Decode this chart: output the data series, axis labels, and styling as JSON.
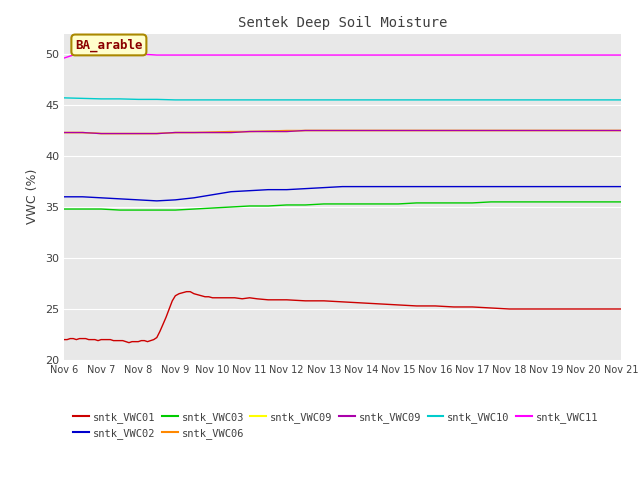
{
  "title": "Sentek Deep Soil Moisture",
  "ylabel": "VWC (%)",
  "ylim": [
    20,
    52
  ],
  "yticks": [
    20,
    25,
    30,
    35,
    40,
    45,
    50
  ],
  "xtick_labels": [
    "Nov 6",
    "Nov 7",
    "Nov 8",
    "Nov 9",
    "Nov 10",
    "Nov 11",
    "Nov 12",
    "Nov 13",
    "Nov 14",
    "Nov 15",
    "Nov 16",
    "Nov 17",
    "Nov 18",
    "Nov 19",
    "Nov 20",
    "Nov 21"
  ],
  "plot_bg_color": "#e8e8e8",
  "annotation_text": "BA_arable",
  "series": [
    {
      "key": "sntk_VWC01",
      "color": "#cc0000",
      "label": "sntk_VWC01",
      "values_x": [
        6.0,
        6.083,
        6.167,
        6.25,
        6.333,
        6.417,
        6.5,
        6.583,
        6.667,
        6.75,
        6.833,
        6.917,
        7.0,
        7.083,
        7.167,
        7.25,
        7.333,
        7.417,
        7.5,
        7.583,
        7.667,
        7.75,
        7.833,
        7.917,
        8.0,
        8.083,
        8.167,
        8.25,
        8.333,
        8.417,
        8.5,
        8.583,
        8.667,
        8.75,
        8.833,
        8.917,
        9.0,
        9.1,
        9.2,
        9.3,
        9.4,
        9.5,
        9.6,
        9.7,
        9.8,
        9.9,
        10.0,
        10.2,
        10.4,
        10.6,
        10.8,
        11.0,
        11.2,
        11.5,
        11.8,
        12.0,
        12.5,
        13.0,
        13.5,
        14.0,
        14.5,
        15.0,
        15.5,
        16.0,
        16.5,
        17.0,
        17.5,
        18.0,
        18.5,
        19.0,
        19.5,
        20.0,
        20.5,
        21.0
      ],
      "values_y": [
        22.0,
        22.0,
        22.1,
        22.1,
        22.0,
        22.1,
        22.1,
        22.1,
        22.0,
        22.0,
        22.0,
        21.9,
        22.0,
        22.0,
        22.0,
        22.0,
        21.9,
        21.9,
        21.9,
        21.9,
        21.8,
        21.7,
        21.8,
        21.8,
        21.8,
        21.9,
        21.9,
        21.8,
        21.9,
        22.0,
        22.2,
        22.8,
        23.5,
        24.2,
        25.0,
        25.8,
        26.3,
        26.5,
        26.6,
        26.7,
        26.7,
        26.5,
        26.4,
        26.3,
        26.2,
        26.2,
        26.1,
        26.1,
        26.1,
        26.1,
        26.0,
        26.1,
        26.0,
        25.9,
        25.9,
        25.9,
        25.8,
        25.8,
        25.7,
        25.6,
        25.5,
        25.4,
        25.3,
        25.3,
        25.2,
        25.2,
        25.1,
        25.0,
        25.0,
        25.0,
        25.0,
        25.0,
        25.0,
        25.0
      ]
    },
    {
      "key": "sntk_VWC02",
      "color": "#0000cc",
      "label": "sntk_VWC02",
      "values_x": [
        6.0,
        6.5,
        7.0,
        7.5,
        8.0,
        8.5,
        9.0,
        9.5,
        10.0,
        10.5,
        11.0,
        11.5,
        12.0,
        12.5,
        13.0,
        13.5,
        14.0,
        14.5,
        15.0,
        15.5,
        16.0,
        16.5,
        17.0,
        17.5,
        18.0,
        18.5,
        19.0,
        19.5,
        20.0,
        20.5,
        21.0
      ],
      "values_y": [
        36.0,
        36.0,
        35.9,
        35.8,
        35.7,
        35.6,
        35.7,
        35.9,
        36.2,
        36.5,
        36.6,
        36.7,
        36.7,
        36.8,
        36.9,
        37.0,
        37.0,
        37.0,
        37.0,
        37.0,
        37.0,
        37.0,
        37.0,
        37.0,
        37.0,
        37.0,
        37.0,
        37.0,
        37.0,
        37.0,
        37.0
      ]
    },
    {
      "key": "sntk_VWC03",
      "color": "#00cc00",
      "label": "sntk_VWC03",
      "values_x": [
        6.0,
        6.5,
        7.0,
        7.5,
        8.0,
        8.5,
        9.0,
        9.5,
        10.0,
        10.5,
        11.0,
        11.5,
        12.0,
        12.5,
        13.0,
        13.5,
        14.0,
        14.5,
        15.0,
        15.5,
        16.0,
        16.5,
        17.0,
        17.5,
        18.0,
        18.5,
        19.0,
        19.5,
        20.0,
        20.5,
        21.0
      ],
      "values_y": [
        34.8,
        34.8,
        34.8,
        34.7,
        34.7,
        34.7,
        34.7,
        34.8,
        34.9,
        35.0,
        35.1,
        35.1,
        35.2,
        35.2,
        35.3,
        35.3,
        35.3,
        35.3,
        35.3,
        35.4,
        35.4,
        35.4,
        35.4,
        35.5,
        35.5,
        35.5,
        35.5,
        35.5,
        35.5,
        35.5,
        35.5
      ]
    },
    {
      "key": "sntk_VWC06",
      "color": "#ff8800",
      "label": "sntk_VWC06",
      "values_x": [
        6.0,
        6.5,
        7.0,
        7.5,
        8.0,
        8.5,
        9.0,
        9.5,
        10.0,
        10.5,
        11.0,
        11.5,
        12.0,
        12.5,
        13.0,
        13.5,
        14.0,
        14.5,
        15.0,
        15.5,
        16.0,
        16.5,
        17.0,
        17.5,
        18.0,
        18.5,
        19.0,
        19.5,
        20.0,
        20.5,
        21.0
      ],
      "values_y": [
        42.3,
        42.3,
        42.2,
        42.2,
        42.2,
        42.2,
        42.3,
        42.3,
        42.35,
        42.4,
        42.4,
        42.45,
        42.5,
        42.5,
        42.5,
        42.5,
        42.5,
        42.5,
        42.5,
        42.5,
        42.5,
        42.5,
        42.5,
        42.5,
        42.5,
        42.5,
        42.5,
        42.5,
        42.5,
        42.5,
        42.5
      ]
    },
    {
      "key": "sntk_VWC09a",
      "color": "#ffff00",
      "label": "sntk_VWC09",
      "values_x": [
        6.0,
        6.5,
        7.0,
        7.5,
        8.0,
        8.5,
        9.0,
        9.5,
        10.0,
        10.5,
        11.0,
        11.5,
        12.0,
        12.5,
        13.0,
        13.5,
        14.0,
        14.5,
        15.0,
        15.5,
        16.0,
        16.5,
        17.0,
        17.5,
        18.0,
        18.5,
        19.0,
        19.5,
        20.0,
        20.5,
        21.0
      ],
      "values_y": [
        42.3,
        42.3,
        42.2,
        42.2,
        42.2,
        42.2,
        42.3,
        42.3,
        42.3,
        42.3,
        42.4,
        42.4,
        42.4,
        42.5,
        42.5,
        42.5,
        42.5,
        42.5,
        42.5,
        42.5,
        42.5,
        42.5,
        42.5,
        42.5,
        42.5,
        42.5,
        42.5,
        42.5,
        42.5,
        42.5,
        42.5
      ]
    },
    {
      "key": "sntk_VWC09b",
      "color": "#aa00aa",
      "label": "sntk_VWC09",
      "values_x": [
        6.0,
        6.5,
        7.0,
        7.5,
        8.0,
        8.5,
        9.0,
        9.5,
        10.0,
        10.5,
        11.0,
        11.5,
        12.0,
        12.5,
        13.0,
        13.5,
        14.0,
        14.5,
        15.0,
        15.5,
        16.0,
        16.5,
        17.0,
        17.5,
        18.0,
        18.5,
        19.0,
        19.5,
        20.0,
        20.5,
        21.0
      ],
      "values_y": [
        42.3,
        42.3,
        42.2,
        42.2,
        42.2,
        42.2,
        42.3,
        42.3,
        42.3,
        42.3,
        42.4,
        42.4,
        42.4,
        42.5,
        42.5,
        42.5,
        42.5,
        42.5,
        42.5,
        42.5,
        42.5,
        42.5,
        42.5,
        42.5,
        42.5,
        42.5,
        42.5,
        42.5,
        42.5,
        42.5,
        42.5
      ]
    },
    {
      "key": "sntk_VWC10",
      "color": "#00cccc",
      "label": "sntk_VWC10",
      "values_x": [
        6.0,
        6.5,
        7.0,
        7.5,
        8.0,
        8.5,
        9.0,
        9.5,
        10.0,
        10.5,
        11.0,
        11.5,
        12.0,
        12.5,
        13.0,
        13.5,
        14.0,
        14.5,
        15.0,
        15.5,
        16.0,
        16.5,
        17.0,
        17.5,
        18.0,
        18.5,
        19.0,
        19.5,
        20.0,
        20.5,
        21.0
      ],
      "values_y": [
        45.7,
        45.65,
        45.6,
        45.6,
        45.55,
        45.55,
        45.5,
        45.5,
        45.5,
        45.5,
        45.5,
        45.5,
        45.5,
        45.5,
        45.5,
        45.5,
        45.5,
        45.5,
        45.5,
        45.5,
        45.5,
        45.5,
        45.5,
        45.5,
        45.5,
        45.5,
        45.5,
        45.5,
        45.5,
        45.5,
        45.5
      ]
    },
    {
      "key": "sntk_VWC11",
      "color": "#ff00ff",
      "label": "sntk_VWC11",
      "values_x": [
        6.0,
        6.25,
        6.5,
        7.0,
        7.5,
        8.0,
        8.5,
        9.0,
        9.5,
        10.0,
        10.5,
        11.0,
        11.5,
        12.0,
        12.5,
        13.0,
        13.5,
        14.0,
        14.5,
        15.0,
        15.5,
        16.0,
        16.5,
        17.0,
        17.5,
        18.0,
        18.5,
        19.0,
        19.5,
        20.0,
        20.5,
        21.0
      ],
      "values_y": [
        49.6,
        49.9,
        50.0,
        50.0,
        50.0,
        50.0,
        49.9,
        49.9,
        49.9,
        49.9,
        49.9,
        49.9,
        49.9,
        49.9,
        49.9,
        49.9,
        49.9,
        49.9,
        49.9,
        49.9,
        49.9,
        49.9,
        49.9,
        49.9,
        49.9,
        49.9,
        49.9,
        49.9,
        49.9,
        49.9,
        49.9,
        49.9
      ]
    }
  ],
  "legend_items": [
    {
      "label": "sntk_VWC01",
      "color": "#cc0000"
    },
    {
      "label": "sntk_VWC02",
      "color": "#0000cc"
    },
    {
      "label": "sntk_VWC03",
      "color": "#00cc00"
    },
    {
      "label": "sntk_VWC06",
      "color": "#ff8800"
    },
    {
      "label": "sntk_VWC09",
      "color": "#ffff00"
    },
    {
      "label": "sntk_VWC09",
      "color": "#aa00aa"
    },
    {
      "label": "sntk_VWC10",
      "color": "#00cccc"
    },
    {
      "label": "sntk_VWC11",
      "color": "#ff00ff"
    }
  ]
}
